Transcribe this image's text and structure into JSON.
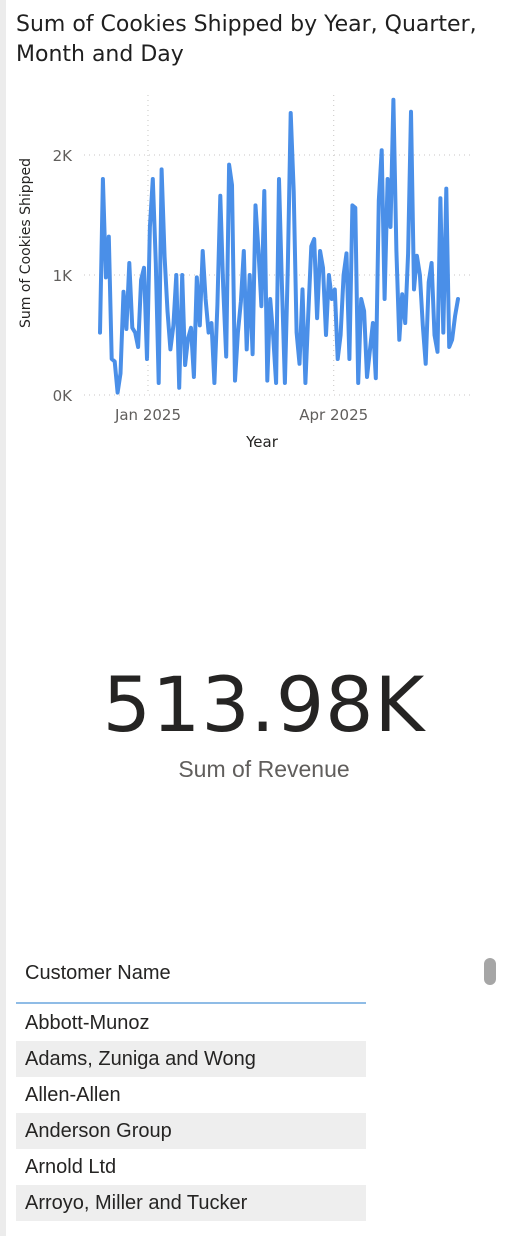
{
  "chart_visual": {
    "title": "Sum of Cookies Shipped by Year, Quarter, Month and Day"
  },
  "chart_data": {
    "type": "line",
    "title": "Sum of Cookies Shipped by Year, Quarter, Month and Day",
    "xlabel": "Year",
    "ylabel": "Sum of Cookies Shipped",
    "x_tick_labels": [
      "Jan 2025",
      "Apr 2025"
    ],
    "y_tick_labels": [
      "0K",
      "1K",
      "2K"
    ],
    "y_ticks": [
      0,
      1000,
      2000
    ],
    "ylim": [
      0,
      2500
    ],
    "x_range": [
      "2024-12-01",
      "2025-06-07"
    ],
    "x_ticks": [
      "2025-01-01",
      "2025-04-01"
    ],
    "grid": "horizontal-dotted",
    "line_color": "#4a8fe8",
    "series": [
      {
        "values": [
          520,
          1800,
          980,
          1320,
          300,
          280,
          20,
          180,
          860,
          550,
          1100,
          560,
          520,
          400,
          960,
          1060,
          300,
          1400,
          1800,
          1100,
          100,
          1880,
          1150,
          700,
          380,
          580,
          1000,
          60,
          1000,
          250,
          470,
          560,
          150,
          980,
          580,
          1200,
          800,
          520,
          600,
          100,
          750,
          1660,
          900,
          320,
          1920,
          1750,
          120,
          520,
          780,
          1200,
          380,
          1000,
          340,
          1580,
          1200,
          740,
          1700,
          120,
          800,
          500,
          100,
          1800,
          920,
          100,
          1060,
          2350,
          1700,
          520,
          260,
          880,
          100,
          680,
          1240,
          1300,
          640,
          1200,
          1060,
          500,
          1000,
          800,
          880,
          300,
          500,
          1000,
          1180,
          300,
          1580,
          1560,
          100,
          800,
          700,
          150,
          380,
          600,
          140,
          1620,
          2040,
          800,
          1800,
          1400,
          2460,
          1200,
          460,
          840,
          600,
          1180,
          2360,
          880,
          1160,
          1000,
          580,
          260,
          940,
          1100,
          500,
          360,
          1640,
          520,
          1720,
          400,
          460,
          660,
          800
        ]
      }
    ]
  },
  "card": {
    "value": "513.98K",
    "label": "Sum of Revenue"
  },
  "table": {
    "header": "Customer Name",
    "rows": [
      "Abbott-Munoz",
      "Adams, Zuniga and Wong",
      "Allen-Allen",
      "Anderson Group",
      "Arnold Ltd",
      "Arroyo, Miller and Tucker"
    ]
  }
}
